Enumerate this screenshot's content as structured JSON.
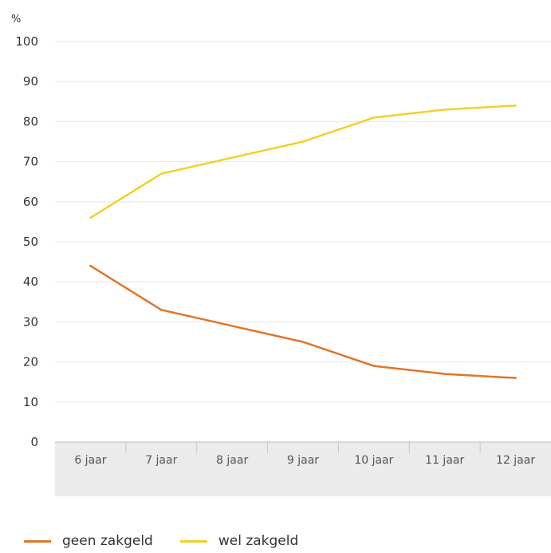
{
  "chart_data": {
    "type": "line",
    "unit": "%",
    "categories": [
      "6 jaar",
      "7 jaar",
      "8 jaar",
      "9 jaar",
      "10 jaar",
      "11 jaar",
      "12 jaar"
    ],
    "series": [
      {
        "name": "geen zakgeld",
        "color": "#e07528",
        "values": [
          44,
          33,
          29,
          25,
          19,
          17,
          16
        ]
      },
      {
        "name": "wel zakgeld",
        "color": "#f2d02a",
        "values": [
          56,
          67,
          71,
          75,
          81,
          83,
          84
        ]
      }
    ],
    "ylim": [
      0,
      100
    ],
    "yticks": [
      0,
      10,
      20,
      30,
      40,
      50,
      60,
      70,
      80,
      90,
      100
    ],
    "grid": true,
    "legend_position": "bottom-left"
  }
}
